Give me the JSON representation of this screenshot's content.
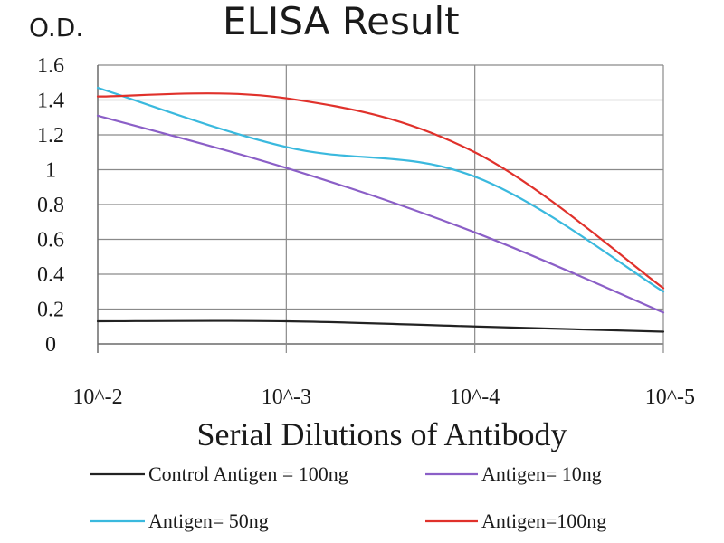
{
  "chart_data": {
    "type": "line",
    "title": "ELISA Result",
    "ylabel": "O.D.",
    "xlabel": "Serial Dilutions of Antibody",
    "x_ticks": [
      "10^-2",
      "10^-3",
      "10^-4",
      "10^-5"
    ],
    "y_ticks": [
      "0",
      "0.2",
      "0.4",
      "0.6",
      "0.8",
      "1",
      "1.2",
      "1.4",
      "1.6"
    ],
    "ylim": [
      0,
      1.6
    ],
    "x_scale": "log dilution, 10^-2 to 10^-5",
    "grid": true,
    "legend_position": "bottom",
    "x": [
      "10^-2",
      "10^-3",
      "10^-4",
      "10^-5"
    ],
    "series": [
      {
        "name": "Control Antigen = 100ng",
        "color": "#222222",
        "values": [
          0.13,
          0.13,
          0.1,
          0.07
        ]
      },
      {
        "name": "Antigen= 10ng",
        "color": "#8b5fc7",
        "values": [
          1.31,
          1.01,
          0.64,
          0.18
        ]
      },
      {
        "name": "Antigen= 50ng",
        "color": "#3ab9de",
        "values": [
          1.47,
          1.13,
          0.96,
          0.3
        ]
      },
      {
        "name": "Antigen=100ng",
        "color": "#e0312b",
        "values": [
          1.42,
          1.41,
          1.1,
          0.32
        ]
      }
    ]
  }
}
